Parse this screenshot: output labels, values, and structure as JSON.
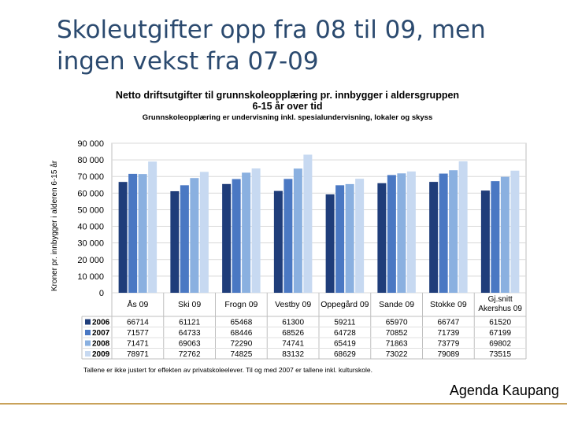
{
  "slide": {
    "title_line1": "Skoleutgifter opp fra 08 til 09, men",
    "title_line2": "ingen vekst fra 07-09",
    "footer": "Agenda Kaupang"
  },
  "colors": {
    "s2006": "#1f3d7a",
    "s2007": "#4a78c3",
    "s2008": "#8ab0e0",
    "s2009": "#c7d9f1",
    "grid": "#d8d8d8",
    "text": "#000000"
  },
  "chart_data": {
    "type": "bar",
    "title_line1": "Netto driftsutgifter til grunnskoleopplæring pr. innbygger i aldersgruppen",
    "title_line2": "6-15 år over tid",
    "subtitle": "Grunnskoleopplæring er undervisning inkl. spesialundervisning, lokaler og skyss",
    "ylabel": "Kroner pr. innbygger i alderen 6-15 år",
    "ylim": [
      0,
      90000
    ],
    "yticks": [
      "0",
      "10 000",
      "20 000",
      "30 000",
      "40 000",
      "50 000",
      "60 000",
      "70 000",
      "80 000",
      "90 000"
    ],
    "categories": [
      "Ås 09",
      "Ski 09",
      "Frogn 09",
      "Vestby 09",
      "Oppegård 09",
      "Sande 09",
      "Stokke 09",
      "Gj.snitt|Akershus 09"
    ],
    "series": [
      {
        "name": "2006",
        "values": [
          66714,
          61121,
          65468,
          61300,
          59211,
          65970,
          66747,
          61520
        ]
      },
      {
        "name": "2007",
        "values": [
          71577,
          64733,
          68446,
          68526,
          64728,
          70852,
          71739,
          67199
        ]
      },
      {
        "name": "2008",
        "values": [
          71471,
          69063,
          72290,
          74741,
          65419,
          71863,
          73779,
          69802
        ]
      },
      {
        "name": "2009",
        "values": [
          78971,
          72762,
          74825,
          83132,
          68629,
          73022,
          79089,
          73515
        ]
      }
    ],
    "footnote": "Tallene er ikke justert for effekten av privatskoleelever. Til og med 2007 er tallene inkl. kulturskole."
  }
}
